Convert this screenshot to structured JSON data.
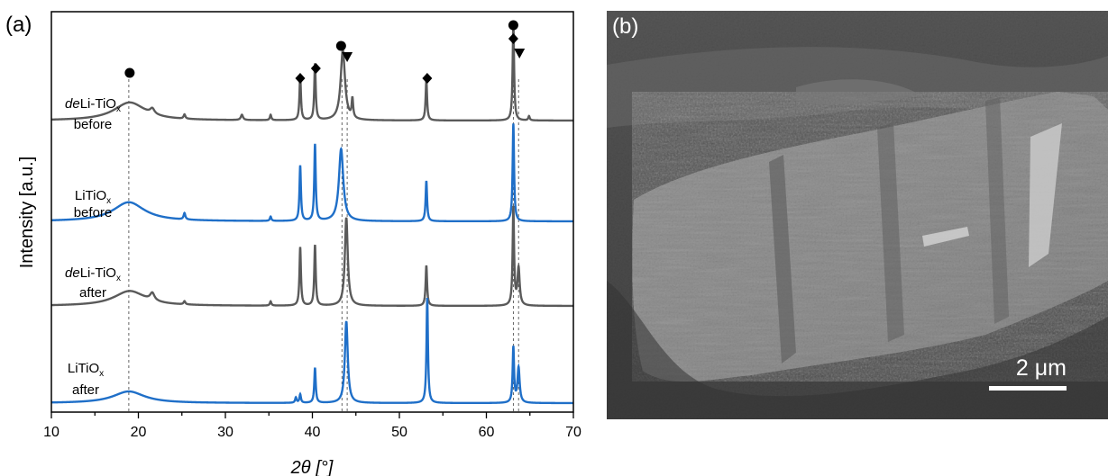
{
  "panel_a_label": "(a)",
  "panel_b_label": "(b)",
  "scale_bar": "2 μm",
  "colors": {
    "gray": "#5a5a5a",
    "blue": "#1f6fc8",
    "axis": "#000000"
  },
  "chart_data": {
    "type": "line",
    "xlabel": "2θ [°]",
    "ylabel": "Intensity [a.u.]",
    "xlim": [
      10,
      70
    ],
    "xticks": [
      10,
      20,
      30,
      40,
      50,
      60,
      70
    ],
    "grid": false,
    "series": [
      {
        "name_line1": "deLi-TiOx",
        "name_line2": "before",
        "color": "gray",
        "peaks": [
          [
            19.0,
            0.17,
            2.2
          ],
          [
            21.6,
            0.05,
            0.3
          ],
          [
            25.3,
            0.04,
            0.12
          ],
          [
            31.9,
            0.05,
            0.15
          ],
          [
            35.2,
            0.05,
            0.1
          ],
          [
            38.6,
            0.42,
            0.1
          ],
          [
            40.3,
            0.53,
            0.1
          ],
          [
            43.5,
            0.66,
            0.3
          ],
          [
            44.6,
            0.18,
            0.1
          ],
          [
            53.1,
            0.38,
            0.1
          ],
          [
            63.1,
            0.92,
            0.1
          ],
          [
            64.9,
            0.04,
            0.1
          ]
        ]
      },
      {
        "name_line1": "LiTiOx",
        "name_line2": "before",
        "color": "blue",
        "peaks": [
          [
            18.9,
            0.18,
            2.2
          ],
          [
            25.3,
            0.06,
            0.12
          ],
          [
            35.2,
            0.04,
            0.1
          ],
          [
            38.6,
            0.52,
            0.1
          ],
          [
            40.3,
            0.72,
            0.1
          ],
          [
            43.3,
            0.68,
            0.3
          ],
          [
            53.1,
            0.38,
            0.1
          ],
          [
            63.1,
            0.92,
            0.1
          ]
        ]
      },
      {
        "name_line1": "deLi-TiOx",
        "name_line2": "after",
        "color": "gray",
        "peaks": [
          [
            19.0,
            0.14,
            2.2
          ],
          [
            21.6,
            0.07,
            0.3
          ],
          [
            25.3,
            0.03,
            0.12
          ],
          [
            35.2,
            0.04,
            0.1
          ],
          [
            38.6,
            0.55,
            0.1
          ],
          [
            40.3,
            0.57,
            0.1
          ],
          [
            43.9,
            0.83,
            0.2
          ],
          [
            53.1,
            0.38,
            0.1
          ],
          [
            63.1,
            0.92,
            0.1
          ],
          [
            63.7,
            0.35,
            0.15
          ]
        ]
      },
      {
        "name_line1": "LiTiOx",
        "name_line2": "after",
        "color": "blue",
        "peaks": [
          [
            18.9,
            0.11,
            2.2
          ],
          [
            38.1,
            0.05,
            0.1
          ],
          [
            38.6,
            0.08,
            0.1
          ],
          [
            40.3,
            0.33,
            0.1
          ],
          [
            43.9,
            0.77,
            0.2
          ],
          [
            53.2,
            0.99,
            0.1
          ],
          [
            63.1,
            0.52,
            0.1
          ],
          [
            63.7,
            0.33,
            0.15
          ]
        ]
      }
    ],
    "reference_lines": [
      18.9,
      43.4,
      44.0,
      63.1,
      63.7
    ],
    "markers": [
      {
        "symbol": "circle",
        "x": 19.0,
        "row": 1
      },
      {
        "symbol": "diamond",
        "x": 38.6,
        "row": 1
      },
      {
        "symbol": "diamond",
        "x": 40.4,
        "row": 1
      },
      {
        "symbol": "circle",
        "x": 43.3,
        "row": 1
      },
      {
        "symbol": "triangle",
        "x": 44.0,
        "row": 1
      },
      {
        "symbol": "diamond",
        "x": 53.2,
        "row": 1
      },
      {
        "symbol": "circle",
        "x": 63.1,
        "row": 1
      },
      {
        "symbol": "diamond",
        "x": 63.1,
        "row": 1
      },
      {
        "symbol": "triangle",
        "x": 63.8,
        "row": 1
      }
    ]
  }
}
